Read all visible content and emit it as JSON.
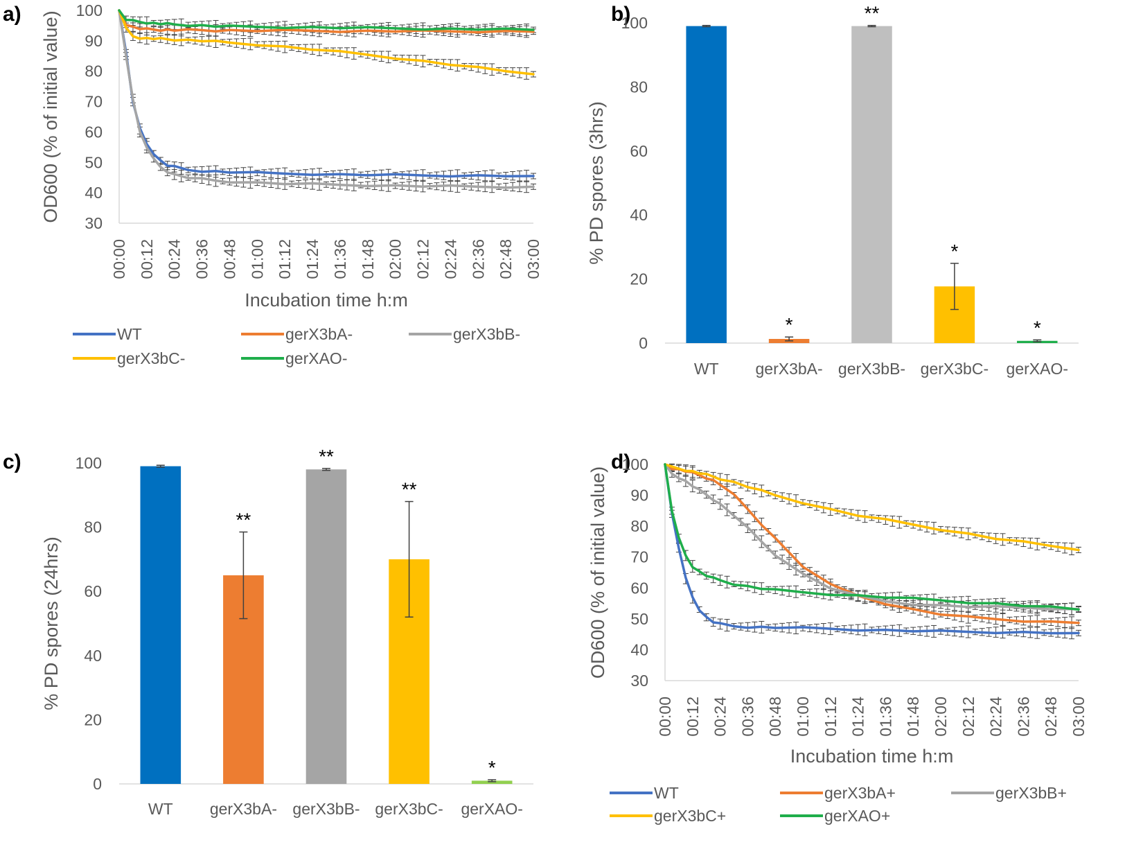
{
  "panels": {
    "a": {
      "label": "a)"
    },
    "b": {
      "label": "b)"
    },
    "c": {
      "label": "c)"
    },
    "d": {
      "label": "d)"
    }
  },
  "colors": {
    "blue": "#4472C4",
    "orange": "#ED7D31",
    "gray": "#A5A5A5",
    "yellow": "#FFC000",
    "green": "#1FAE4B",
    "darkblue": "#0070C0",
    "lightgreen": "#92D050"
  },
  "chart_data": [
    {
      "id": "a",
      "type": "line",
      "title": "",
      "xlabel": "Incubation time h:m",
      "ylabel": "OD600 (% of initial value)",
      "ylim": [
        30,
        100
      ],
      "yticks": [
        30,
        40,
        50,
        60,
        70,
        80,
        90,
        100
      ],
      "xlim": [
        0,
        180
      ],
      "xtick_labels": [
        "00:00",
        "00:12",
        "00:24",
        "00:36",
        "00:48",
        "01:00",
        "01:12",
        "01:24",
        "01:36",
        "01:48",
        "02:00",
        "02:12",
        "02:24",
        "02:36",
        "02:48",
        "03:00"
      ],
      "x_minutes": [
        0,
        3,
        6,
        9,
        12,
        15,
        18,
        21,
        24,
        30,
        36,
        42,
        48,
        60,
        72,
        84,
        96,
        108,
        120,
        132,
        144,
        156,
        168,
        180
      ],
      "series": [
        {
          "name": "WT",
          "color": "#4472C4",
          "values": [
            100,
            86,
            70,
            61,
            56,
            53,
            50.5,
            49,
            48.5,
            47.5,
            47.2,
            47,
            46.8,
            46.5,
            46.3,
            46.2,
            46,
            45.9,
            45.8,
            45.7,
            45.7,
            45.6,
            45.6,
            45.5
          ]
        },
        {
          "name": "gerX3bA-",
          "color": "#ED7D31",
          "values": [
            100,
            95.5,
            94.5,
            94,
            93.8,
            93.7,
            93.6,
            93.6,
            93.5,
            93.5,
            93.5,
            93.4,
            93.4,
            93.3,
            93.3,
            93.3,
            93.2,
            93.2,
            93.2,
            93.1,
            93.1,
            93.1,
            93.1,
            93
          ]
        },
        {
          "name": "gerX3bB-",
          "color": "#A5A5A5",
          "values": [
            100,
            85,
            71,
            60,
            55,
            51,
            48.5,
            47,
            46,
            45,
            44.5,
            44,
            43.7,
            43.3,
            43,
            42.8,
            42.6,
            42.5,
            42.3,
            42.2,
            42.1,
            42,
            42,
            42
          ]
        },
        {
          "name": "gerX3bC-",
          "color": "#FFC000",
          "values": [
            100,
            94,
            91.5,
            91,
            90.8,
            90.7,
            90.6,
            90.5,
            90.4,
            90.2,
            90,
            89.7,
            89.4,
            88.8,
            88,
            87.2,
            86.3,
            85.4,
            84.4,
            83.3,
            82.2,
            81.1,
            80,
            79
          ]
        },
        {
          "name": "gerXAO-",
          "color": "#1FAE4B",
          "values": [
            100,
            97,
            96.5,
            96.2,
            96,
            95.8,
            95.6,
            95.5,
            95.4,
            95.2,
            95,
            94.8,
            94.7,
            94.6,
            94.5,
            94.4,
            94.3,
            94.2,
            94.1,
            94,
            93.9,
            93.8,
            93.7,
            93.6
          ]
        }
      ],
      "legend": [
        "WT",
        "gerX3bA-",
        "gerX3bB-",
        "gerX3bC-",
        "gerXAO-"
      ]
    },
    {
      "id": "b",
      "type": "bar",
      "title": "",
      "xlabel": "",
      "ylabel": "% PD spores (3hrs)",
      "ylim": [
        0,
        100
      ],
      "yticks": [
        0,
        20,
        40,
        60,
        80,
        100
      ],
      "categories": [
        "WT",
        "gerX3bA-",
        "gerX3bB-",
        "gerX3bC-",
        "gerXAO-"
      ],
      "values": [
        99,
        1.3,
        99,
        17.7,
        0.7
      ],
      "errors": [
        0.2,
        0.6,
        0.2,
        7.2,
        0.3
      ],
      "significance": [
        "",
        "*",
        "**",
        "*",
        "*"
      ],
      "colors": [
        "#0070C0",
        "#ED7D31",
        "#BFBFBF",
        "#FFC000",
        "#1FAE4B"
      ]
    },
    {
      "id": "c",
      "type": "bar",
      "title": "",
      "xlabel": "",
      "ylabel": "% PD spores (24hrs)",
      "ylim": [
        0,
        100
      ],
      "yticks": [
        0,
        20,
        40,
        60,
        80,
        100
      ],
      "categories": [
        "WT",
        "gerX3bA-",
        "gerX3bB-",
        "gerX3bC-",
        "gerXAO-"
      ],
      "values": [
        99,
        65,
        98,
        70,
        1
      ],
      "errors": [
        0.3,
        13.5,
        0.3,
        18,
        0.3
      ],
      "significance": [
        "",
        "**",
        "**",
        "**",
        "*"
      ],
      "colors": [
        "#0070C0",
        "#ED7D31",
        "#A5A5A5",
        "#FFC000",
        "#92D050"
      ]
    },
    {
      "id": "d",
      "type": "line",
      "title": "",
      "xlabel": "Incubation time h:m",
      "ylabel": "OD600 (% of initial value)",
      "ylim": [
        30,
        100
      ],
      "yticks": [
        30,
        40,
        50,
        60,
        70,
        80,
        90,
        100
      ],
      "xlim": [
        0,
        180
      ],
      "xtick_labels": [
        "00:00",
        "00:12",
        "00:24",
        "00:36",
        "00:48",
        "01:00",
        "01:12",
        "01:24",
        "01:36",
        "01:48",
        "02:00",
        "02:12",
        "02:24",
        "02:36",
        "02:48",
        "03:00"
      ],
      "x_minutes": [
        0,
        3,
        6,
        9,
        12,
        15,
        18,
        21,
        24,
        30,
        36,
        42,
        48,
        60,
        72,
        84,
        96,
        108,
        120,
        132,
        144,
        156,
        168,
        180
      ],
      "series": [
        {
          "name": "WT",
          "color": "#4472C4",
          "values": [
            100,
            84,
            73,
            63,
            57,
            53,
            50.5,
            49,
            48.3,
            47.6,
            47.4,
            47.3,
            47.2,
            47,
            46.8,
            46.5,
            46.3,
            46.1,
            45.9,
            45.8,
            45.7,
            45.6,
            45.5,
            45.4
          ]
        },
        {
          "name": "gerX3bA+",
          "color": "#ED7D31",
          "values": [
            100,
            98.8,
            98.3,
            97.8,
            97.2,
            96.5,
            95.7,
            94.8,
            93.5,
            90,
            85.5,
            80.7,
            76,
            67,
            61,
            57.5,
            55,
            53,
            51.5,
            50.5,
            49.9,
            49.4,
            49,
            48.7
          ]
        },
        {
          "name": "gerX3bB+",
          "color": "#A5A5A5",
          "values": [
            100,
            97,
            95.8,
            94.5,
            93,
            91.6,
            90.2,
            88.7,
            87.1,
            83.5,
            79.3,
            75,
            70.8,
            64.5,
            60,
            57.3,
            55.7,
            54.8,
            54.3,
            54,
            53.8,
            53.6,
            53.4,
            53.2
          ]
        },
        {
          "name": "gerX3bC+",
          "color": "#FFC000",
          "values": [
            100,
            99,
            98.6,
            98.2,
            97.7,
            97.2,
            96.6,
            96,
            95.4,
            94.2,
            92.8,
            91.4,
            90,
            87.7,
            85.4,
            83.5,
            82,
            80.5,
            79,
            77.5,
            76,
            74.8,
            73.6,
            72.3
          ]
        },
        {
          "name": "gerXAO+",
          "color": "#1FAE4B",
          "values": [
            100,
            85,
            76,
            70.5,
            67,
            65.2,
            64,
            63.1,
            62.5,
            61.3,
            60.5,
            59.8,
            59.3,
            58.6,
            58,
            57.5,
            57,
            56.5,
            56,
            55.4,
            54.9,
            54.3,
            53.7,
            53
          ]
        }
      ],
      "legend": [
        "WT",
        "gerX3bA+",
        "gerX3bB+",
        "gerX3bC+",
        "gerXAO+"
      ]
    }
  ]
}
